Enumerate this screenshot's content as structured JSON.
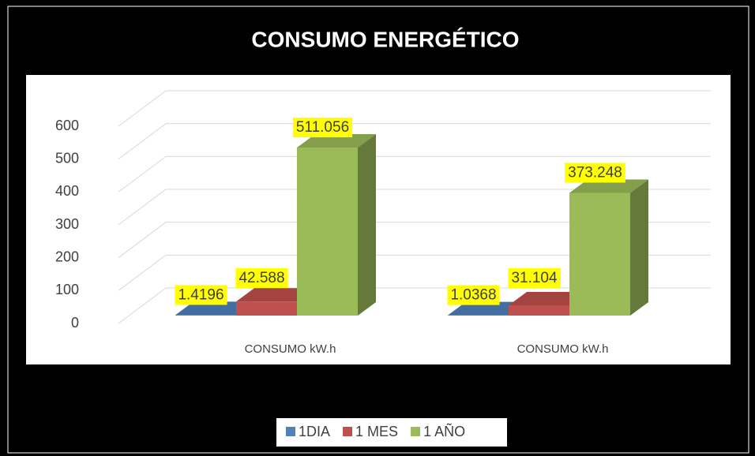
{
  "chart_data": {
    "type": "bar3d",
    "title": "CONSUMO ENERGÉTICO",
    "categories": [
      "CONSUMO kW.h",
      "CONSUMO kW.h"
    ],
    "series": [
      {
        "name": "1DIA",
        "color": "#4f81bd",
        "values": [
          1.4196,
          1.0368
        ]
      },
      {
        "name": "1 MES",
        "color": "#c0504d",
        "values": [
          42.588,
          31.104
        ]
      },
      {
        "name": "1 AÑO",
        "color": "#9bbb59",
        "values": [
          511.056,
          373.248
        ]
      }
    ],
    "ylim": [
      0,
      600
    ],
    "yticks": [
      0,
      100,
      200,
      300,
      400,
      500,
      600
    ],
    "grid": true,
    "legend": "bottom"
  }
}
